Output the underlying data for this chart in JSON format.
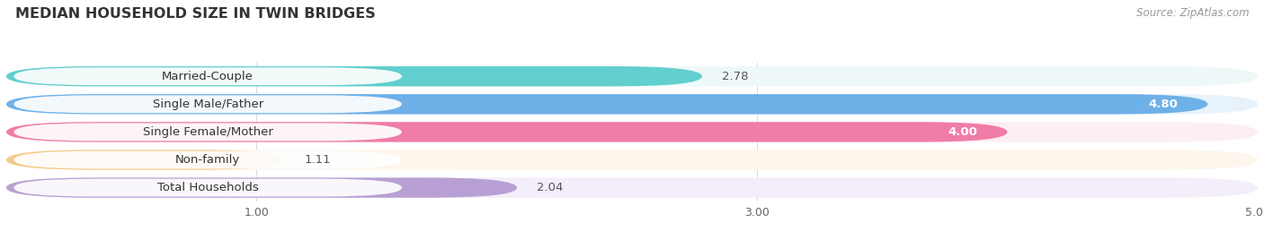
{
  "title": "MEDIAN HOUSEHOLD SIZE IN TWIN BRIDGES",
  "source_text": "Source: ZipAtlas.com",
  "categories": [
    "Married-Couple",
    "Single Male/Father",
    "Single Female/Mother",
    "Non-family",
    "Total Households"
  ],
  "values": [
    2.78,
    4.8,
    4.0,
    1.11,
    2.04
  ],
  "bar_colors": [
    "#62cece",
    "#6eb0e8",
    "#f07ca8",
    "#f5c98a",
    "#b8a0d4"
  ],
  "bar_bg_colors": [
    "#eef8f8",
    "#e8f2fb",
    "#fdeef3",
    "#fdf6ed",
    "#f3eef9"
  ],
  "xlim_min": 0,
  "xlim_max": 5.0,
  "xticks": [
    1.0,
    3.0,
    5.0
  ],
  "title_fontsize": 11.5,
  "label_fontsize": 9.5,
  "value_fontsize": 9.5,
  "source_fontsize": 8.5,
  "background_color": "#ffffff"
}
